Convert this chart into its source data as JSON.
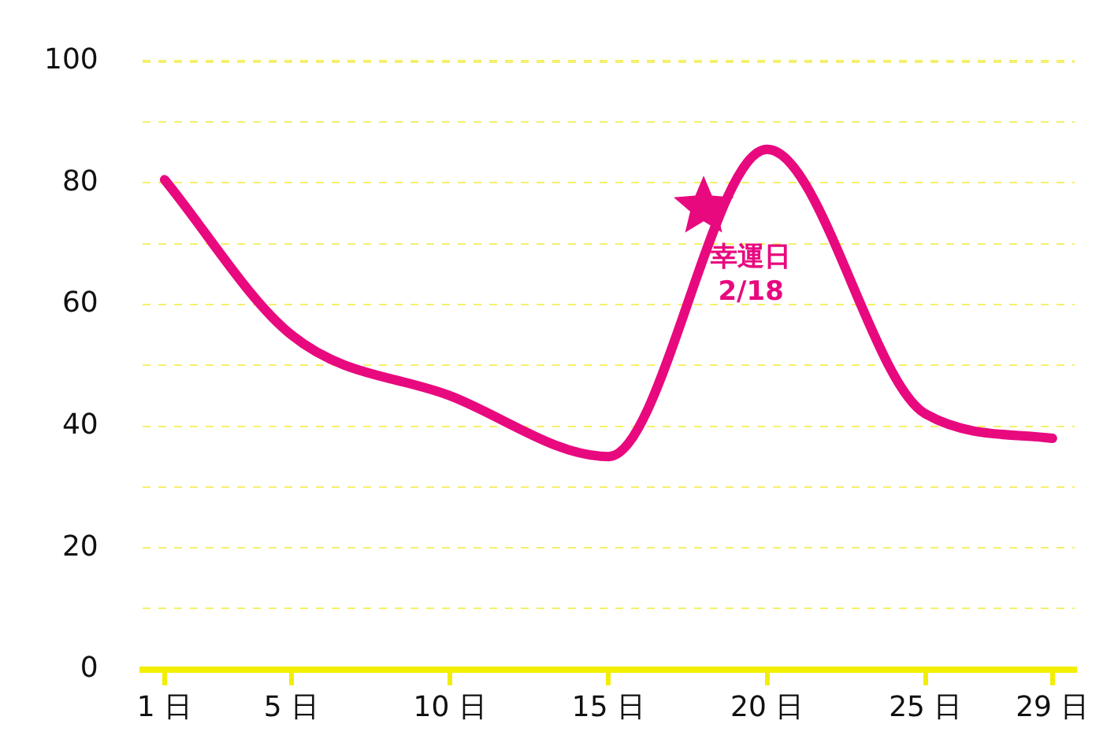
{
  "chart_data": {
    "type": "line",
    "x": [
      1,
      5,
      10,
      15,
      20,
      25,
      29
    ],
    "series": [
      {
        "color": "#e8097f",
        "values": [
          80.5,
          55,
          45,
          35,
          85.5,
          42,
          38
        ]
      },
      {
        "type": "scatter",
        "color": "#e8097f",
        "marker": "star",
        "x": [
          18
        ],
        "values": [
          76
        ]
      }
    ],
    "xlim": [
      0.3,
      29.7
    ],
    "xticks": [
      {
        "value": 1,
        "label": "1 日"
      },
      {
        "value": 5,
        "label": "5 日"
      },
      {
        "value": 10,
        "label": "10 日"
      },
      {
        "value": 15,
        "label": "15 日"
      },
      {
        "value": 20,
        "label": "20 日"
      },
      {
        "value": 25,
        "label": "25 日"
      },
      {
        "value": 29,
        "label": "29 日"
      }
    ],
    "ylim": [
      0,
      100
    ],
    "yticks": [
      0,
      {
        "value": 10,
        "label": null
      },
      20,
      {
        "value": 30,
        "label": null
      },
      40,
      {
        "value": 50,
        "label": null
      },
      60,
      {
        "value": 70,
        "label": null
      },
      80,
      {
        "value": 90,
        "label": null
      },
      100
    ],
    "grid": "y",
    "legend": false,
    "annotations": [
      {
        "text": "幸運日\n2/18",
        "x": 18,
        "y": 76
      }
    ]
  }
}
